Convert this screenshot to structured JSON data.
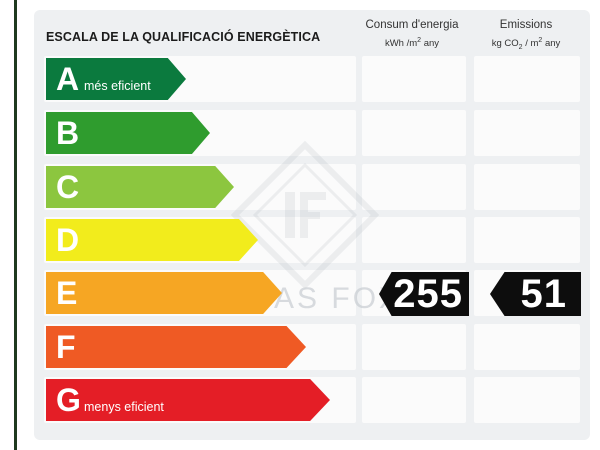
{
  "label": {
    "title": "ESCALA DE LA QUALIFICACIÓ ENERGÈTICA",
    "consum_header": {
      "line1": "Consum d'energia",
      "line2_a": "kWh /m",
      "line2_sup": "2",
      "line2_b": " any"
    },
    "emissions_header": {
      "line1": "Emissions",
      "line2_a": "kg CO",
      "line2_sub": "2",
      "line2_b": " / m",
      "line2_sup": "2",
      "line2_c": " any"
    },
    "classes": [
      {
        "letter": "A",
        "caption": "més eficient",
        "color": "#0b7a3e"
      },
      {
        "letter": "B",
        "caption": "",
        "color": "#2f9c2e"
      },
      {
        "letter": "C",
        "caption": "",
        "color": "#8cc63f"
      },
      {
        "letter": "D",
        "caption": "",
        "color": "#f2ec1c"
      },
      {
        "letter": "E",
        "caption": "",
        "color": "#f6a623"
      },
      {
        "letter": "F",
        "caption": "",
        "color": "#ef5a24"
      },
      {
        "letter": "G",
        "caption": "menys eficient",
        "color": "#e41e26"
      }
    ],
    "rating": {
      "class": "E",
      "consum_value": "255",
      "emissions_value": "51"
    },
    "watermark": {
      "text": "LUCAS FOX"
    }
  }
}
